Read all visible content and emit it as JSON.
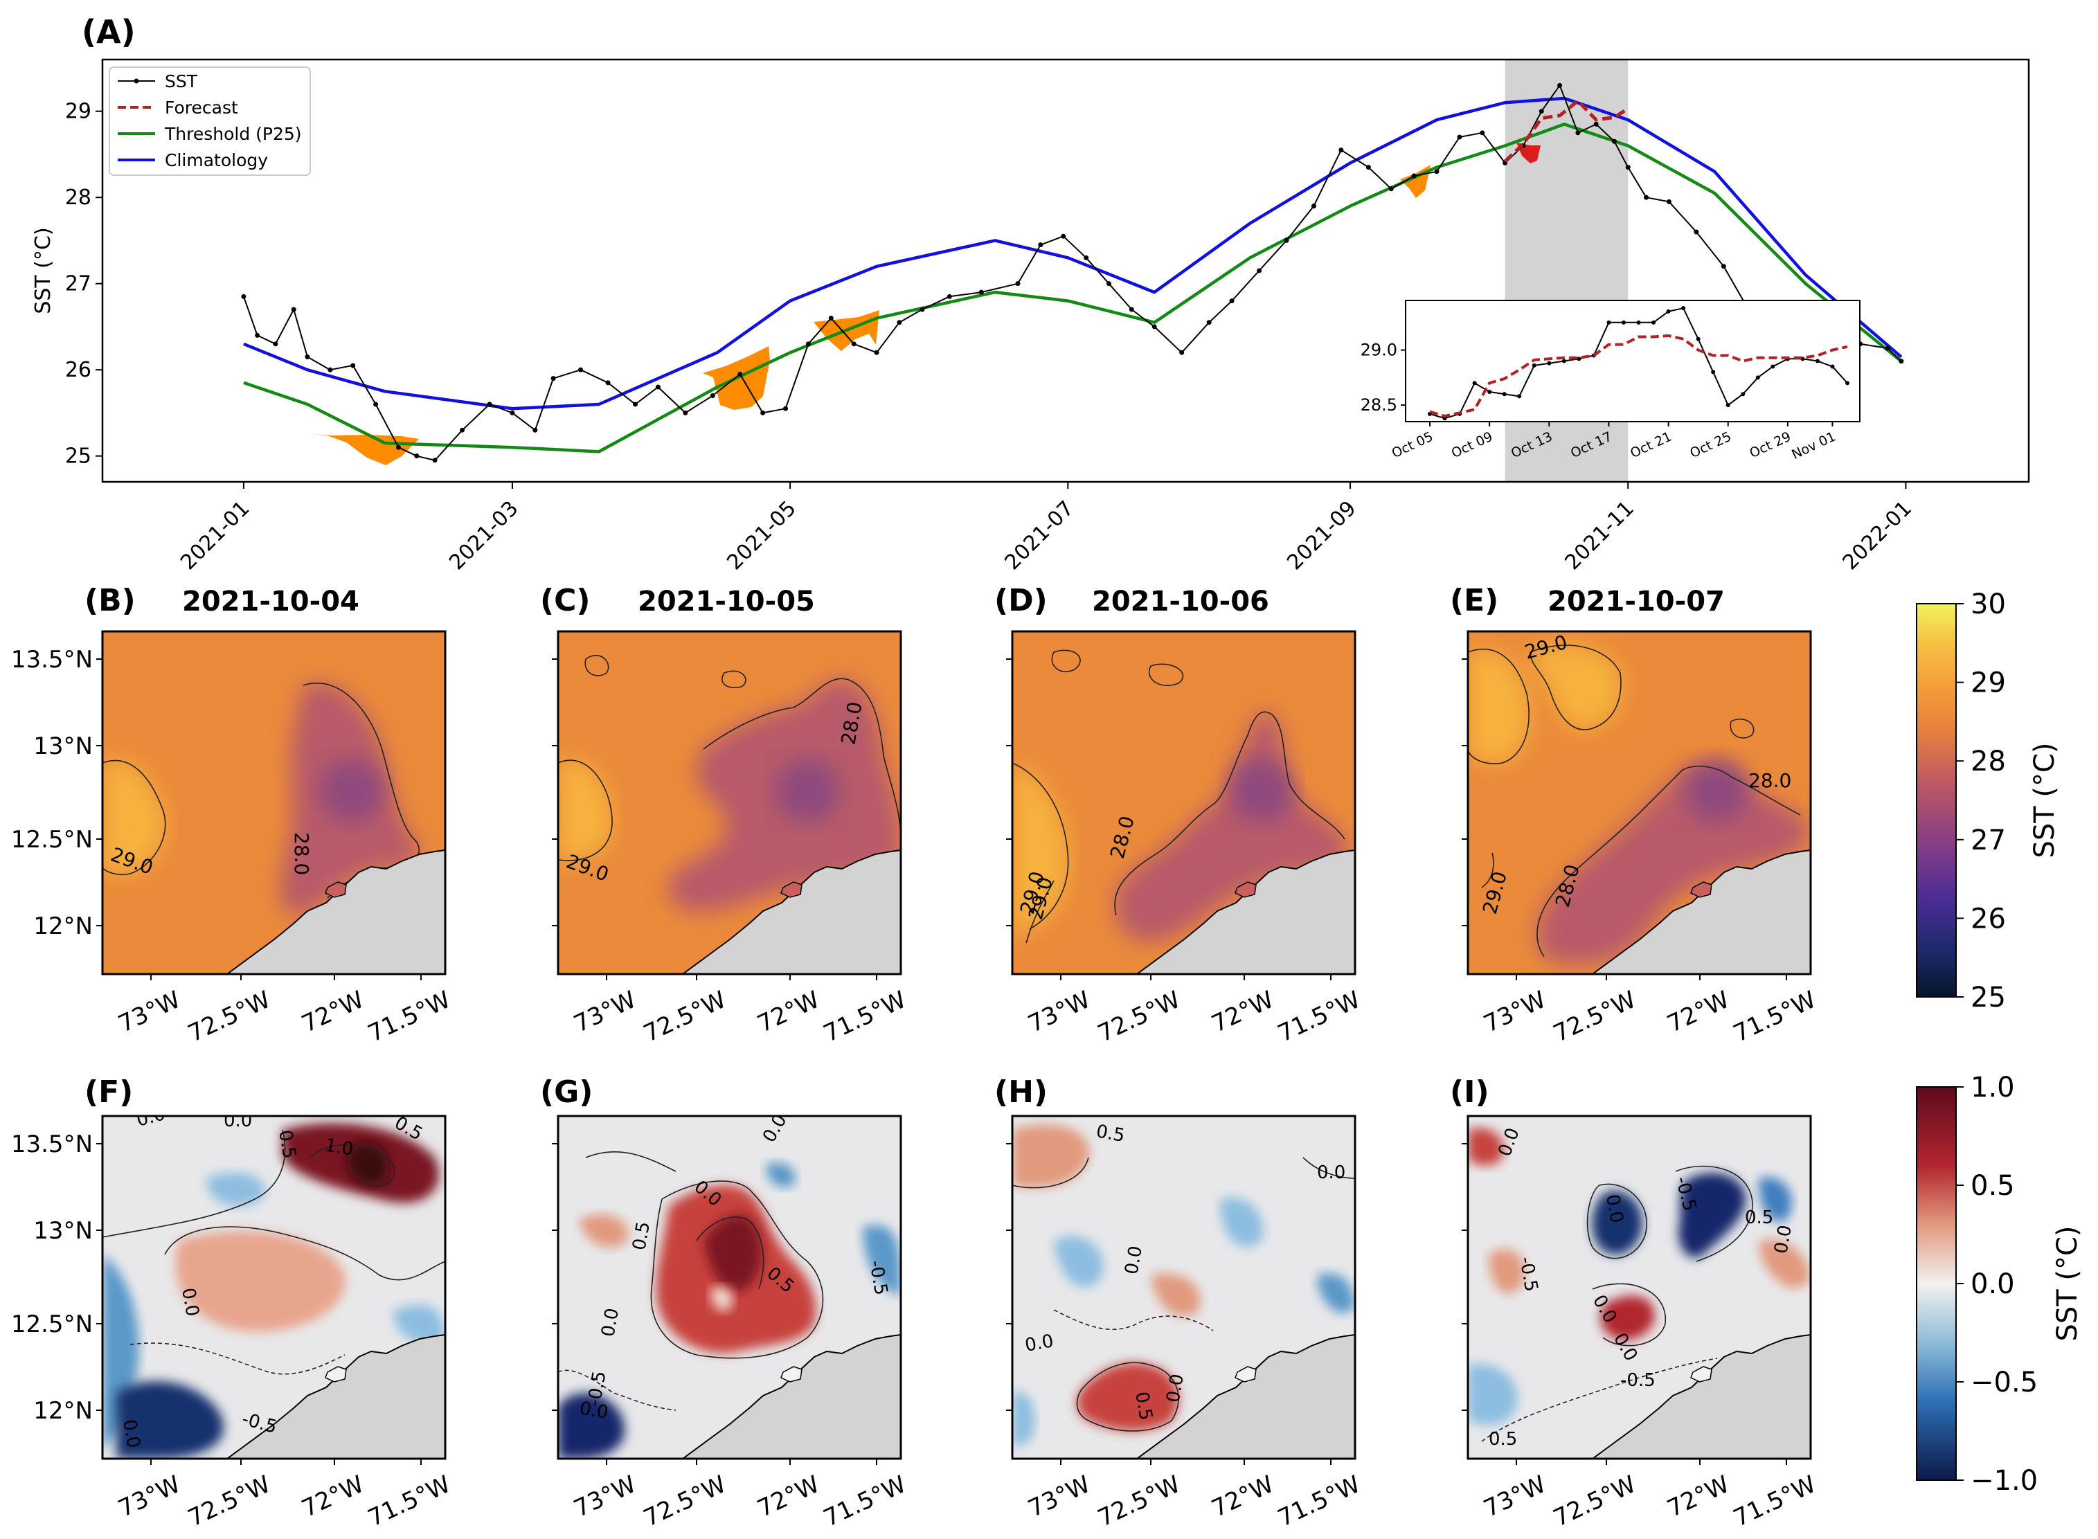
{
  "colors": {
    "sst": "#000000",
    "forecast": "#b22222",
    "threshold": "#138a13",
    "climatology": "#1010e0",
    "deficit_fill": "#ff8c00",
    "forecast_fill": "#dd1c1c",
    "highlight": "#d3d3d3",
    "land": "#d3d3d3"
  },
  "panel_a": {
    "letter": "(A)",
    "ylabel": "SST (°C)",
    "ylim": [
      24.7,
      29.6
    ],
    "yticks": [
      "25",
      "26",
      "27",
      "28",
      "29"
    ],
    "xticks": [
      "2021-01",
      "2021-03",
      "2021-05",
      "2021-07",
      "2021-09",
      "2021-11",
      "2022-01"
    ],
    "legend": [
      "SST",
      "Forecast",
      "Threshold (P25)",
      "Climatology"
    ],
    "highlight_span": [
      "2021-10-05",
      "2021-11-01"
    ]
  },
  "inset": {
    "yticks": [
      "28.5",
      "29.0"
    ],
    "xticks": [
      "Oct 05",
      "Oct 09",
      "Oct 13",
      "Oct 17",
      "Oct 21",
      "Oct 25",
      "Oct 29",
      "Nov 01"
    ]
  },
  "maps": {
    "titles": [
      {
        "letter": "(B)",
        "date": "2021-10-04"
      },
      {
        "letter": "(C)",
        "date": "2021-10-05"
      },
      {
        "letter": "(D)",
        "date": "2021-10-06"
      },
      {
        "letter": "(E)",
        "date": "2021-10-07"
      }
    ],
    "anomaly_letters": [
      "(F)",
      "(G)",
      "(H)",
      "(I)"
    ],
    "lat_ticks": [
      "13.5°N",
      "13°N",
      "12.5°N",
      "12°N"
    ],
    "lon_ticks": [
      "73°W",
      "72.5°W",
      "72°W",
      "71.5°W"
    ],
    "sst_contour_labels": [
      [
        "28.0",
        "29.0"
      ],
      [
        "28.0",
        "29.0"
      ],
      [
        "28.0",
        "29.0",
        "29.0"
      ],
      [
        "29.0",
        "28.0",
        "28.0",
        "29.0"
      ]
    ],
    "anom_contour_labels": [
      [
        "0.0",
        "0.0",
        "0.5",
        "1.0",
        "0.5",
        "0.0",
        "0.0",
        "-0.5"
      ],
      [
        "0.5",
        "0.5",
        "0.0",
        "0.0",
        "0.0",
        "-0.5",
        "-0.5",
        "0.0"
      ],
      [
        "0.5",
        "0.0",
        "0.0",
        "0.0",
        "0.5",
        "0.0"
      ],
      [
        "0.0",
        "0.0",
        "-0.5",
        "-0.5",
        "0.5",
        "0.0",
        "0.0",
        "-0.5",
        "0.5",
        "0.5",
        "0.0"
      ]
    ]
  },
  "colorbars": {
    "sst": {
      "label": "SST (°C)",
      "ticks": [
        "30",
        "29",
        "28",
        "27",
        "26",
        "25"
      ]
    },
    "anomaly": {
      "label": "SST (°C)",
      "ticks": [
        "1.0",
        "0.5",
        "0.0",
        "−0.5",
        "−1.0"
      ]
    }
  },
  "chart_data": [
    {
      "type": "line",
      "x_unit": "date",
      "series": [
        {
          "name": "SST",
          "x": [
            "2021-01-01",
            "2021-01-04",
            "2021-01-08",
            "2021-01-12",
            "2021-01-15",
            "2021-01-20",
            "2021-01-25",
            "2021-01-30",
            "2021-02-04",
            "2021-02-08",
            "2021-02-12",
            "2021-02-18",
            "2021-02-24",
            "2021-03-01",
            "2021-03-06",
            "2021-03-10",
            "2021-03-16",
            "2021-03-22",
            "2021-03-28",
            "2021-04-02",
            "2021-04-08",
            "2021-04-14",
            "2021-04-20",
            "2021-04-25",
            "2021-04-30",
            "2021-05-05",
            "2021-05-10",
            "2021-05-15",
            "2021-05-20",
            "2021-05-25",
            "2021-05-30",
            "2021-06-05",
            "2021-06-12",
            "2021-06-20",
            "2021-06-25",
            "2021-06-30",
            "2021-07-05",
            "2021-07-10",
            "2021-07-15",
            "2021-07-20",
            "2021-07-26",
            "2021-08-01",
            "2021-08-06",
            "2021-08-12",
            "2021-08-18",
            "2021-08-24",
            "2021-08-30",
            "2021-09-05",
            "2021-09-10",
            "2021-09-15",
            "2021-09-20",
            "2021-09-25",
            "2021-09-30",
            "2021-10-05",
            "2021-10-09",
            "2021-10-13",
            "2021-10-17",
            "2021-10-21",
            "2021-10-25",
            "2021-10-29",
            "2021-11-01",
            "2021-11-05",
            "2021-11-10",
            "2021-11-16",
            "2021-11-22",
            "2021-11-28",
            "2021-12-04",
            "2021-12-10",
            "2021-12-16",
            "2021-12-22",
            "2021-12-28",
            "2021-12-31"
          ],
          "values": [
            26.85,
            26.4,
            26.3,
            26.7,
            26.15,
            26.0,
            26.05,
            25.6,
            25.1,
            25.0,
            24.95,
            25.3,
            25.6,
            25.5,
            25.3,
            25.9,
            26.0,
            25.85,
            25.6,
            25.8,
            25.5,
            25.7,
            25.95,
            25.5,
            25.55,
            26.3,
            26.6,
            26.3,
            26.2,
            26.55,
            26.7,
            26.85,
            26.9,
            27.0,
            27.45,
            27.55,
            27.3,
            27.0,
            26.7,
            26.5,
            26.2,
            26.55,
            26.8,
            27.15,
            27.5,
            27.9,
            28.55,
            28.35,
            28.1,
            28.25,
            28.3,
            28.7,
            28.75,
            28.4,
            28.6,
            29.0,
            29.3,
            28.75,
            28.85,
            28.65,
            28.35,
            28.0,
            27.95,
            27.6,
            27.2,
            26.65,
            26.25,
            26.5,
            26.4,
            26.3,
            26.25,
            26.1
          ]
        },
        {
          "name": "Forecast",
          "x": [
            "2021-10-05",
            "2021-10-09",
            "2021-10-13",
            "2021-10-17",
            "2021-10-21",
            "2021-10-25",
            "2021-10-29",
            "2021-11-01"
          ],
          "values": [
            28.42,
            28.62,
            28.92,
            28.95,
            29.12,
            28.9,
            28.93,
            29.03
          ]
        },
        {
          "name": "Threshold (P25)",
          "x": [
            "2021-01-01",
            "2021-01-15",
            "2021-02-01",
            "2021-03-01",
            "2021-03-20",
            "2021-04-15",
            "2021-05-01",
            "2021-05-20",
            "2021-06-15",
            "2021-07-01",
            "2021-07-20",
            "2021-08-10",
            "2021-09-01",
            "2021-09-20",
            "2021-10-05",
            "2021-10-18",
            "2021-11-01",
            "2021-11-20",
            "2021-12-10",
            "2021-12-31"
          ],
          "values": [
            25.85,
            25.6,
            25.15,
            25.1,
            25.05,
            25.8,
            26.2,
            26.6,
            26.9,
            26.8,
            26.55,
            27.3,
            27.9,
            28.35,
            28.6,
            28.85,
            28.6,
            28.05,
            27.0,
            26.1
          ]
        },
        {
          "name": "Climatology",
          "x": [
            "2021-01-01",
            "2021-01-15",
            "2021-02-01",
            "2021-03-01",
            "2021-03-20",
            "2021-04-15",
            "2021-05-01",
            "2021-05-20",
            "2021-06-15",
            "2021-07-01",
            "2021-07-20",
            "2021-08-10",
            "2021-09-01",
            "2021-09-20",
            "2021-10-05",
            "2021-10-18",
            "2021-11-01",
            "2021-11-20",
            "2021-12-10",
            "2021-12-31"
          ],
          "values": [
            26.3,
            26.0,
            25.75,
            25.55,
            25.6,
            26.2,
            26.8,
            27.2,
            27.5,
            27.3,
            26.9,
            27.7,
            28.4,
            28.9,
            29.1,
            29.15,
            28.9,
            28.3,
            27.1,
            26.15
          ]
        }
      ],
      "xlim": [
        "2020-12-01",
        "2022-01-28"
      ],
      "ylim": [
        24.7,
        29.6
      ],
      "ylabel": "SST (°C)",
      "legend_placement": "top-left",
      "highlight": [
        "2021-10-05",
        "2021-11-01"
      ]
    },
    {
      "type": "line",
      "inset_of": "(A)",
      "series": [
        {
          "name": "SST",
          "x": [
            "Oct 05",
            "Oct 06",
            "Oct 07",
            "Oct 08",
            "Oct 09",
            "Oct 10",
            "Oct 11",
            "Oct 12",
            "Oct 13",
            "Oct 14",
            "Oct 15",
            "Oct 16",
            "Oct 17",
            "Oct 18",
            "Oct 19",
            "Oct 20",
            "Oct 21",
            "Oct 22",
            "Oct 23",
            "Oct 24",
            "Oct 25",
            "Oct 26",
            "Oct 27",
            "Oct 28",
            "Oct 29",
            "Oct 30",
            "Oct 31",
            "Nov 01",
            "Nov 02"
          ],
          "values": [
            28.42,
            28.38,
            28.42,
            28.7,
            28.62,
            28.6,
            28.58,
            28.86,
            28.88,
            28.9,
            28.92,
            28.95,
            29.25,
            29.25,
            29.25,
            29.25,
            29.35,
            29.38,
            29.1,
            28.8,
            28.5,
            28.6,
            28.75,
            28.85,
            28.92,
            28.92,
            28.9,
            28.85,
            28.7
          ]
        },
        {
          "name": "Forecast",
          "x": [
            "Oct 05",
            "Oct 06",
            "Oct 07",
            "Oct 08",
            "Oct 09",
            "Oct 10",
            "Oct 11",
            "Oct 12",
            "Oct 13",
            "Oct 14",
            "Oct 15",
            "Oct 16",
            "Oct 17",
            "Oct 18",
            "Oct 19",
            "Oct 20",
            "Oct 21",
            "Oct 22",
            "Oct 23",
            "Oct 24",
            "Oct 25",
            "Oct 26",
            "Oct 27",
            "Oct 28",
            "Oct 29",
            "Oct 30",
            "Oct 31",
            "Nov 01",
            "Nov 02"
          ],
          "values": [
            28.44,
            28.4,
            28.43,
            28.46,
            28.7,
            28.74,
            28.82,
            28.91,
            28.92,
            28.93,
            28.93,
            28.95,
            29.05,
            29.05,
            29.12,
            29.12,
            29.13,
            29.1,
            29.0,
            28.95,
            28.95,
            28.9,
            28.93,
            28.93,
            28.93,
            28.93,
            28.95,
            29.0,
            29.03
          ]
        }
      ],
      "ylim": [
        28.35,
        29.45
      ]
    }
  ]
}
